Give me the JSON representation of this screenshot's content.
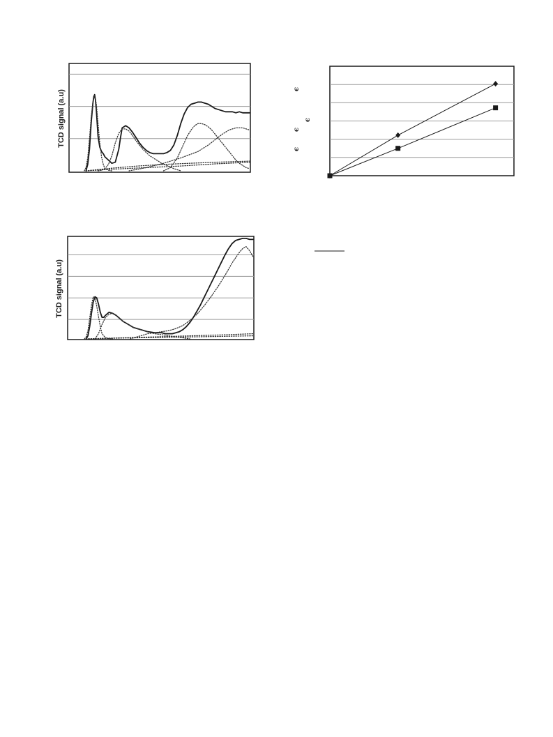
{
  "page": {
    "background": "#ffffff"
  },
  "chart_data": [
    {
      "type": "line",
      "id": "tpr-top-left",
      "title": "",
      "xlabel": "",
      "ylabel": "TCD signal (a.u)",
      "xlim": [
        0,
        100
      ],
      "ylim": [
        0,
        100
      ],
      "grid": true,
      "gridlines_y": [
        30,
        60,
        90
      ],
      "legend": "none",
      "colors": {
        "measured": "#1a1a1a",
        "fit": "#333333",
        "grid": "#9a9a9a",
        "frame": "#1a1a1a"
      },
      "series": [
        {
          "style": "solid",
          "x": [
            5,
            6,
            7,
            8,
            9,
            9.5,
            10,
            10.5,
            11,
            11.5,
            12,
            13,
            14,
            15,
            16,
            18,
            20,
            22,
            24,
            25,
            26,
            28,
            30,
            32,
            34,
            36,
            38,
            40,
            42,
            44,
            46,
            48,
            50,
            52,
            54,
            56,
            58,
            60,
            62,
            64,
            66,
            68,
            70,
            72,
            74,
            76,
            78,
            80,
            82,
            84,
            86,
            88,
            90,
            92,
            94,
            96,
            98,
            100
          ],
          "y": [
            0,
            6,
            20,
            45,
            63,
            69,
            71,
            66,
            56,
            44,
            32,
            22,
            18,
            16,
            13,
            10,
            7,
            8,
            20,
            31,
            40,
            42,
            40,
            36,
            31,
            26,
            22,
            19,
            17,
            16,
            16,
            16,
            16,
            17,
            19,
            24,
            33,
            44,
            53,
            59,
            62,
            63,
            64,
            64,
            63,
            62,
            60,
            58,
            57,
            56,
            55,
            55,
            55,
            54,
            55,
            54,
            54,
            54
          ]
        },
        {
          "style": "dotted",
          "x": [
            4,
            5,
            6,
            7,
            8,
            9,
            10,
            11,
            12,
            13,
            14,
            15,
            16,
            18,
            20
          ],
          "y": [
            0,
            3,
            12,
            30,
            50,
            64,
            70,
            62,
            44,
            26,
            13,
            6,
            2,
            0.5,
            0
          ]
        },
        {
          "style": "dotted",
          "x": [
            12,
            14,
            16,
            18,
            20,
            22,
            24,
            26,
            28,
            30,
            32,
            34,
            36,
            38,
            40,
            42,
            44,
            46,
            48,
            50,
            52,
            56,
            60
          ],
          "y": [
            0,
            0.6,
            2,
            6,
            14,
            26,
            35,
            39,
            39,
            37,
            33,
            28,
            24,
            20,
            17,
            14,
            12,
            10,
            8,
            6,
            5,
            2,
            0
          ]
        },
        {
          "style": "dotted",
          "x": [
            50,
            54,
            58,
            62,
            64,
            66,
            68,
            70,
            72,
            74,
            76,
            78,
            80,
            82,
            84,
            86,
            88,
            90,
            92,
            94,
            96,
            98,
            100
          ],
          "y": [
            0,
            3,
            12,
            26,
            33,
            38,
            42,
            44,
            44,
            43,
            41,
            38,
            34,
            30,
            26,
            22,
            18,
            14,
            10,
            7,
            5,
            3,
            2
          ]
        },
        {
          "style": "dotted",
          "x": [
            30,
            40,
            50,
            60,
            70,
            76,
            80,
            84,
            88,
            90,
            92,
            94,
            96,
            98,
            100
          ],
          "y": [
            0,
            3,
            7,
            12,
            18,
            24,
            29,
            34,
            38,
            39,
            40,
            40,
            40,
            39,
            38
          ]
        },
        {
          "style": "dotted",
          "x": [
            5,
            20,
            35,
            50,
            65,
            80,
            100
          ],
          "y": [
            0,
            2.5,
            4.5,
            6,
            7,
            8,
            9
          ]
        },
        {
          "style": "dotted",
          "x": [
            5,
            20,
            40,
            60,
            80,
            100
          ],
          "y": [
            0,
            1.5,
            3,
            4.5,
            6.5,
            8
          ]
        }
      ]
    },
    {
      "type": "scatter",
      "id": "linear-top-right",
      "title": "",
      "xlabel": "",
      "ylabel": "",
      "xlim": [
        0,
        100
      ],
      "ylim": [
        0,
        100
      ],
      "grid": true,
      "gridlines_y": [
        16.7,
        33.3,
        50,
        66.7,
        83.3
      ],
      "legend": "none",
      "colors": {
        "line": "#1a1a1a",
        "grid": "#9a9a9a",
        "frame": "#1a1a1a"
      },
      "series": [
        {
          "marker": "diamond",
          "x": [
            0,
            37,
            90
          ],
          "y": [
            0,
            37,
            84
          ]
        },
        {
          "marker": "square",
          "x": [
            0,
            37,
            90
          ],
          "y": [
            0,
            25,
            62
          ]
        }
      ]
    },
    {
      "type": "line",
      "id": "tpr-bottom-left",
      "title": "",
      "xlabel": "",
      "ylabel": "TCD signal (a.u)",
      "xlim": [
        0,
        100
      ],
      "ylim": [
        0,
        100
      ],
      "grid": true,
      "gridlines_y": [
        19,
        40,
        61,
        82
      ],
      "legend": "none",
      "colors": {
        "measured": "#1a1a1a",
        "fit": "#333333",
        "grid": "#9a9a9a",
        "frame": "#1a1a1a"
      },
      "series": [
        {
          "style": "solid",
          "x": [
            5,
            6,
            7,
            8,
            9,
            10,
            11,
            12,
            13,
            14,
            15,
            16,
            18,
            20,
            22,
            24,
            26,
            28,
            30,
            32,
            36,
            40,
            44,
            48,
            50,
            52,
            54,
            56,
            58,
            60,
            62,
            64,
            66,
            68,
            70,
            72,
            74,
            76,
            78,
            80,
            82,
            84,
            86,
            88,
            90,
            92,
            94,
            96,
            98,
            100
          ],
          "y": [
            0,
            3,
            12,
            25,
            36,
            41,
            40,
            34,
            26,
            21,
            21,
            23,
            26,
            25,
            23,
            20,
            17,
            15,
            13,
            11,
            9,
            7,
            6,
            6,
            5,
            5,
            5,
            6,
            7,
            9,
            12,
            16,
            21,
            27,
            33,
            40,
            47,
            54,
            61,
            68,
            75,
            82,
            88,
            93,
            96,
            97,
            98,
            98,
            97,
            97
          ]
        },
        {
          "style": "dotted",
          "x": [
            4,
            5,
            6,
            7,
            8,
            9,
            10,
            11,
            12,
            13,
            14,
            16,
            18,
            20
          ],
          "y": [
            0,
            2,
            8,
            20,
            33,
            41,
            40,
            32,
            22,
            12,
            5,
            1,
            0.3,
            0
          ]
        },
        {
          "style": "dotted",
          "x": [
            10,
            12,
            14,
            16,
            18,
            20,
            22,
            24,
            26,
            28,
            30,
            32,
            36,
            40,
            44,
            48,
            52,
            56,
            60,
            64
          ],
          "y": [
            0,
            5,
            14,
            21,
            24,
            25,
            23,
            20,
            17,
            15,
            13,
            11,
            9,
            7,
            5,
            4,
            3,
            2,
            1,
            0
          ]
        },
        {
          "style": "dotted",
          "x": [
            30,
            36,
            40,
            44,
            48,
            52,
            56,
            60,
            64,
            68,
            72,
            76,
            80,
            84,
            88,
            92,
            94,
            96,
            98,
            100
          ],
          "y": [
            0,
            3,
            5,
            6,
            7,
            8,
            10,
            13,
            18,
            24,
            32,
            41,
            51,
            62,
            74,
            84,
            88,
            90,
            86,
            80
          ]
        },
        {
          "style": "dotted",
          "x": [
            5,
            20,
            40,
            60,
            80,
            100
          ],
          "y": [
            0,
            0.6,
            1.2,
            1.8,
            2.4,
            3
          ]
        },
        {
          "style": "dotted",
          "x": [
            5,
            25,
            45,
            65,
            85,
            100
          ],
          "y": [
            0,
            1,
            2,
            3,
            4,
            5
          ]
        }
      ]
    }
  ]
}
